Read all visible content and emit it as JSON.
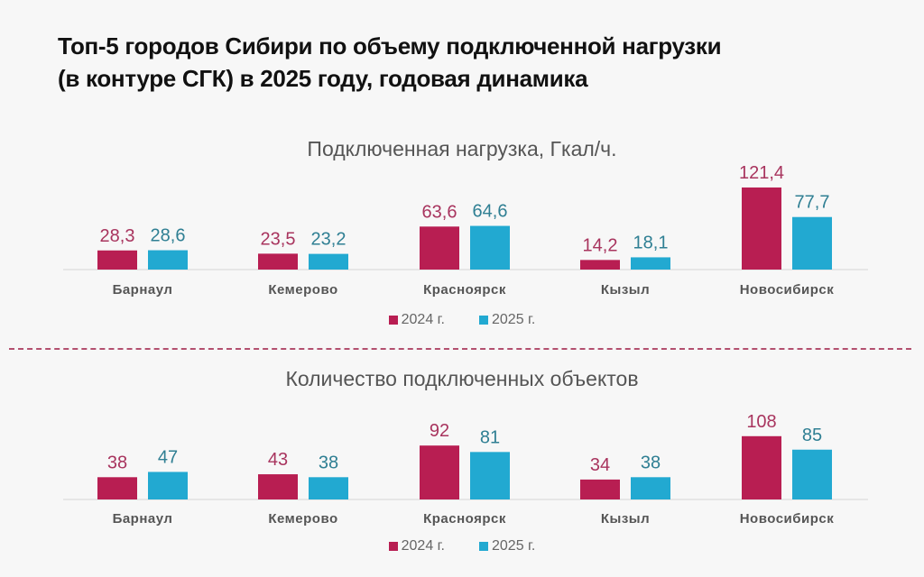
{
  "title_lines": [
    "Топ-5 городов Сибири по объему подключенной нагрузки",
    "(в контуре СГК) в 2025 году, годовая динамика"
  ],
  "colors": {
    "series_2024": "#b81e52",
    "series_2025": "#22a9d1",
    "label_2024": "#a8345e",
    "label_2025": "#2f7f93",
    "divider": "#b3506f"
  },
  "chart_data": [
    {
      "type": "bar",
      "title": "Подключенная нагрузка, Гкал/ч.",
      "categories": [
        "Барнаул",
        "Кемерово",
        "Красноярск",
        "Кызыл",
        "Новосибирск"
      ],
      "series": [
        {
          "name": "2024 г.",
          "values": [
            28.3,
            23.5,
            63.6,
            14.2,
            121.4
          ],
          "labels": [
            "28,3",
            "23,5",
            "63,6",
            "14,2",
            "121,4"
          ]
        },
        {
          "name": "2025 г.",
          "values": [
            28.6,
            23.2,
            64.6,
            18.1,
            77.7
          ],
          "labels": [
            "28,6",
            "23,2",
            "64,6",
            "18,1",
            "77,7"
          ]
        }
      ],
      "xlabel": "",
      "ylabel": "",
      "ylim": [
        0,
        125
      ],
      "grid": false,
      "legend": "bottom"
    },
    {
      "type": "bar",
      "title": "Количество подключенных объектов",
      "categories": [
        "Барнаул",
        "Кемерово",
        "Красноярск",
        "Кызыл",
        "Новосибирск"
      ],
      "series": [
        {
          "name": "2024 г.",
          "values": [
            38,
            43,
            92,
            34,
            108
          ],
          "labels": [
            "38",
            "43",
            "92",
            "34",
            "108"
          ]
        },
        {
          "name": "2025 г.",
          "values": [
            47,
            38,
            81,
            38,
            85
          ],
          "labels": [
            "47",
            "38",
            "81",
            "38",
            "85"
          ]
        }
      ],
      "xlabel": "",
      "ylabel": "",
      "ylim": [
        0,
        110
      ],
      "grid": false,
      "legend": "bottom"
    }
  ]
}
